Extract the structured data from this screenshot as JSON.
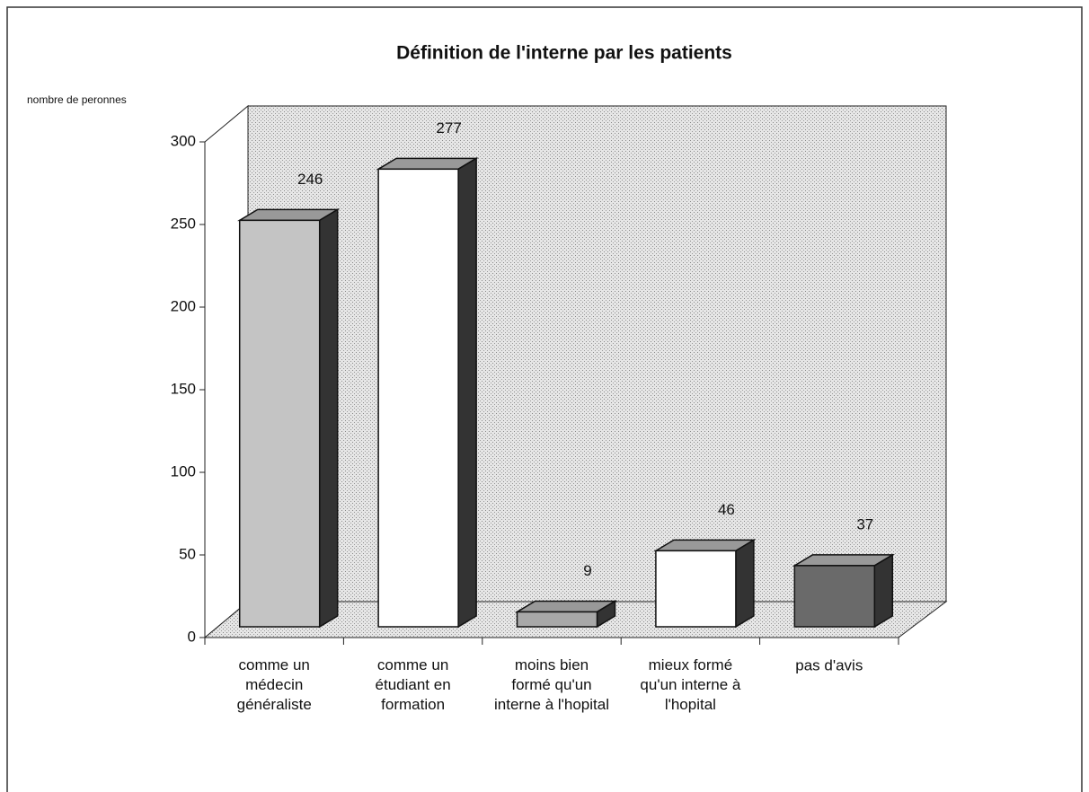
{
  "chart_data": {
    "type": "bar3d",
    "title": "Définition de l'interne par les patients",
    "y_label": "nombre de peronnes",
    "categories": [
      "comme un\nmédecin\ngénéraliste",
      "comme un\nétudiant en\nformation",
      "moins bien\nformé qu'un\ninterne à l'hopital",
      "mieux formé\nqu'un interne à\nl'hopital",
      "pas d'avis"
    ],
    "values": [
      246,
      277,
      9,
      46,
      37
    ],
    "colors": [
      "#c4c4c4",
      "#ffffff",
      "#a8a8a8",
      "#ffffff",
      "#6a6a6a"
    ],
    "ylim": [
      0,
      300
    ],
    "yticks": [
      0,
      50,
      100,
      150,
      200,
      250,
      300
    ]
  }
}
